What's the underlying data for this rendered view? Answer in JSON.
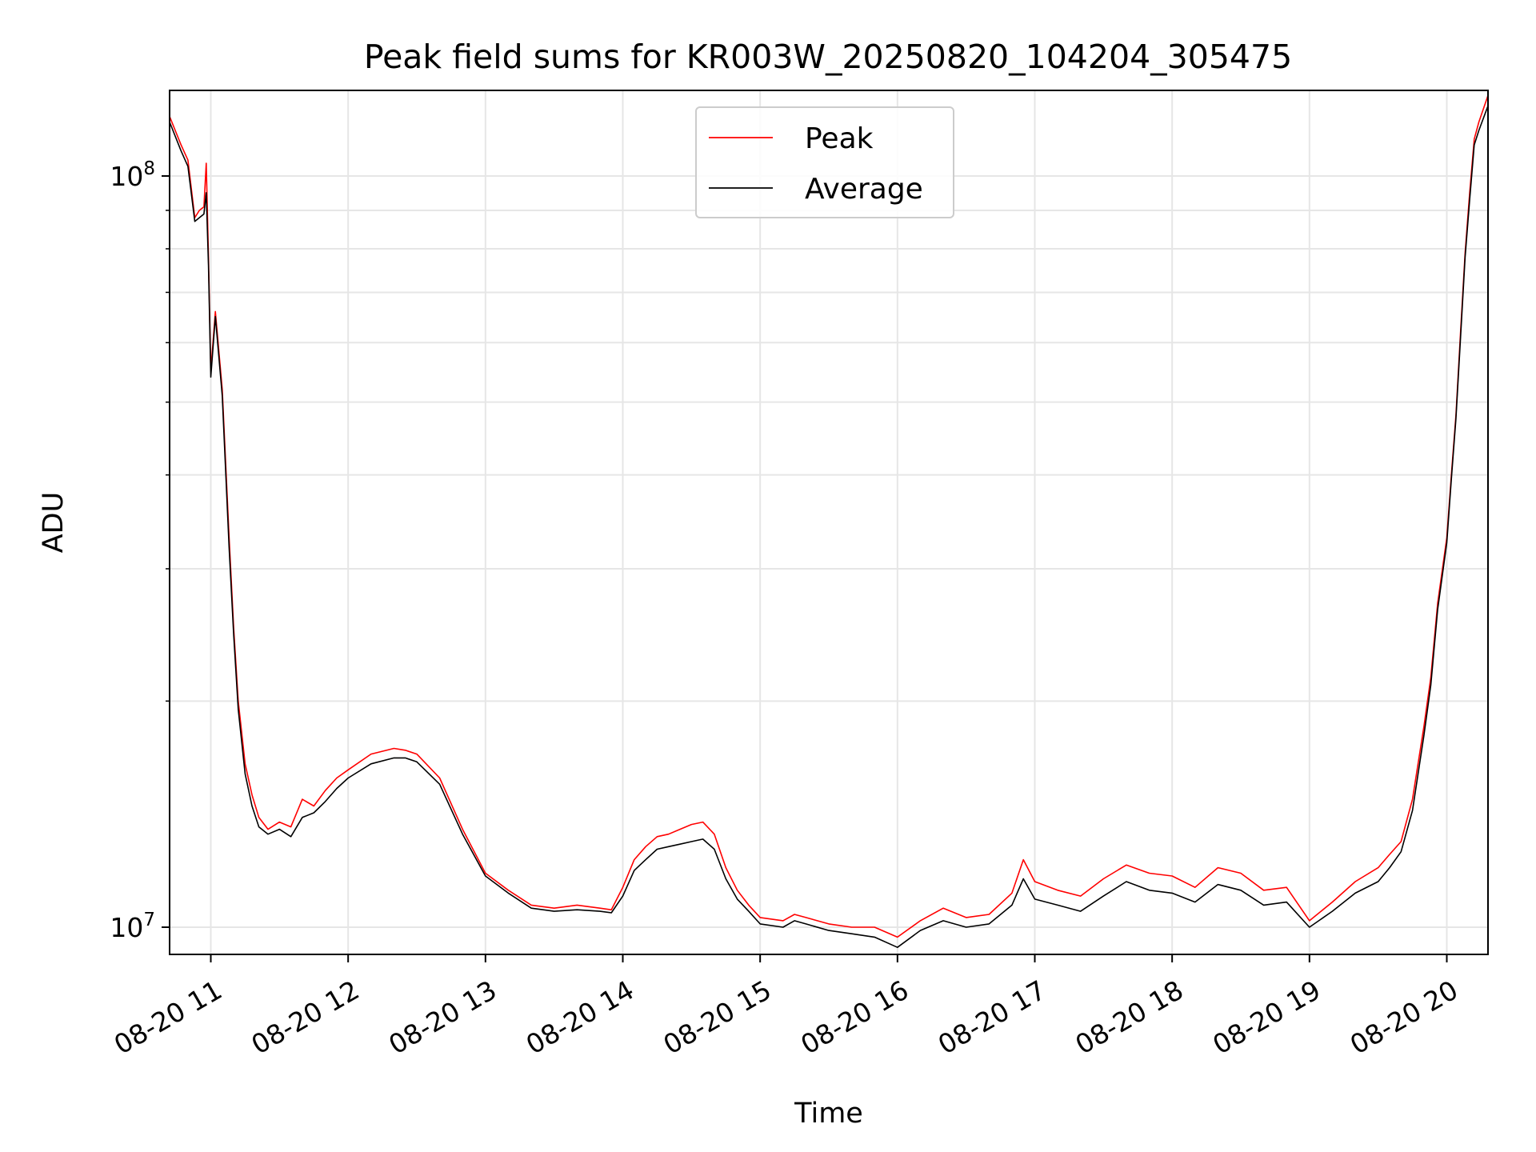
{
  "chart_data": {
    "type": "line",
    "title": "Peak field sums for KR003W_20250820_104204_305475",
    "xlabel": "Time",
    "ylabel": "ADU",
    "yscale": "log",
    "ylim": [
      9200000,
      130000000
    ],
    "xlim": [
      "2025-08-20 10:42",
      "2025-08-20 20:18"
    ],
    "x_ticks": [
      "2025-08-20 11:00",
      "2025-08-20 12:00",
      "2025-08-20 13:00",
      "2025-08-20 14:00",
      "2025-08-20 15:00",
      "2025-08-20 16:00",
      "2025-08-20 17:00",
      "2025-08-20 18:00",
      "2025-08-20 19:00",
      "2025-08-20 20:00"
    ],
    "x_tick_labels": [
      "08-20 11",
      "08-20 12",
      "08-20 13",
      "08-20 14",
      "08-20 15",
      "08-20 16",
      "08-20 17",
      "08-20 18",
      "08-20 19",
      "08-20 20"
    ],
    "y_ticks": [
      10000000,
      100000000
    ],
    "y_tick_labels": [
      {
        "base": "10",
        "exp": "7"
      },
      {
        "base": "10",
        "exp": "8"
      }
    ],
    "grid": true,
    "legend": {
      "location": "upper center",
      "entries": [
        "Peak",
        "Average"
      ]
    },
    "series": [
      {
        "name": "Peak",
        "color": "#ff0000",
        "x": [
          "2025-08-20 10:42",
          "2025-08-20 10:47",
          "2025-08-20 10:50",
          "2025-08-20 10:53",
          "2025-08-20 10:55",
          "2025-08-20 10:57",
          "2025-08-20 10:58",
          "2025-08-20 10:59",
          "2025-08-20 11:00",
          "2025-08-20 11:02",
          "2025-08-20 11:05",
          "2025-08-20 11:08",
          "2025-08-20 11:10",
          "2025-08-20 11:12",
          "2025-08-20 11:15",
          "2025-08-20 11:18",
          "2025-08-20 11:21",
          "2025-08-20 11:25",
          "2025-08-20 11:30",
          "2025-08-20 11:35",
          "2025-08-20 11:40",
          "2025-08-20 11:45",
          "2025-08-20 11:50",
          "2025-08-20 11:55",
          "2025-08-20 12:00",
          "2025-08-20 12:10",
          "2025-08-20 12:20",
          "2025-08-20 12:25",
          "2025-08-20 12:30",
          "2025-08-20 12:40",
          "2025-08-20 12:50",
          "2025-08-20 13:00",
          "2025-08-20 13:10",
          "2025-08-20 13:20",
          "2025-08-20 13:30",
          "2025-08-20 13:40",
          "2025-08-20 13:50",
          "2025-08-20 13:55",
          "2025-08-20 14:00",
          "2025-08-20 14:05",
          "2025-08-20 14:10",
          "2025-08-20 14:15",
          "2025-08-20 14:20",
          "2025-08-20 14:25",
          "2025-08-20 14:30",
          "2025-08-20 14:35",
          "2025-08-20 14:40",
          "2025-08-20 14:45",
          "2025-08-20 14:50",
          "2025-08-20 14:55",
          "2025-08-20 15:00",
          "2025-08-20 15:10",
          "2025-08-20 15:15",
          "2025-08-20 15:20",
          "2025-08-20 15:30",
          "2025-08-20 15:40",
          "2025-08-20 15:50",
          "2025-08-20 16:00",
          "2025-08-20 16:10",
          "2025-08-20 16:20",
          "2025-08-20 16:30",
          "2025-08-20 16:40",
          "2025-08-20 16:50",
          "2025-08-20 16:55",
          "2025-08-20 17:00",
          "2025-08-20 17:10",
          "2025-08-20 17:20",
          "2025-08-20 17:30",
          "2025-08-20 17:40",
          "2025-08-20 17:50",
          "2025-08-20 18:00",
          "2025-08-20 18:10",
          "2025-08-20 18:20",
          "2025-08-20 18:30",
          "2025-08-20 18:40",
          "2025-08-20 18:50",
          "2025-08-20 19:00",
          "2025-08-20 19:10",
          "2025-08-20 19:20",
          "2025-08-20 19:30",
          "2025-08-20 19:35",
          "2025-08-20 19:40",
          "2025-08-20 19:45",
          "2025-08-20 19:50",
          "2025-08-20 19:53",
          "2025-08-20 19:56",
          "2025-08-20 20:00",
          "2025-08-20 20:02",
          "2025-08-20 20:04",
          "2025-08-20 20:06",
          "2025-08-20 20:08",
          "2025-08-20 20:10",
          "2025-08-20 20:12",
          "2025-08-20 20:14",
          "2025-08-20 20:18"
        ],
        "values": [
          120000000,
          110000000,
          105000000,
          88000000,
          90000000,
          91000000,
          104000000,
          78000000,
          55000000,
          66000000,
          52000000,
          33000000,
          25000000,
          20000000,
          16500000,
          15000000,
          14000000,
          13500000,
          13800000,
          13600000,
          14800000,
          14500000,
          15200000,
          15800000,
          16200000,
          17000000,
          17300000,
          17200000,
          17000000,
          15800000,
          13500000,
          11800000,
          11200000,
          10700000,
          10600000,
          10700000,
          10600000,
          10550000,
          11300000,
          12300000,
          12800000,
          13200000,
          13300000,
          13500000,
          13700000,
          13800000,
          13300000,
          12000000,
          11200000,
          10700000,
          10300000,
          10200000,
          10400000,
          10300000,
          10100000,
          10000000,
          10000000,
          9700000,
          10200000,
          10600000,
          10300000,
          10400000,
          11100000,
          12300000,
          11500000,
          11200000,
          11000000,
          11600000,
          12100000,
          11800000,
          11700000,
          11300000,
          12000000,
          11800000,
          11200000,
          11300000,
          10200000,
          10800000,
          11500000,
          12000000,
          12500000,
          13000000,
          14800000,
          18500000,
          21500000,
          27000000,
          33000000,
          40000000,
          48000000,
          62000000,
          79000000,
          95000000,
          112000000,
          118000000,
          128000000
        ]
      },
      {
        "name": "Average",
        "color": "#000000",
        "x": [
          "2025-08-20 10:42",
          "2025-08-20 10:47",
          "2025-08-20 10:50",
          "2025-08-20 10:53",
          "2025-08-20 10:55",
          "2025-08-20 10:57",
          "2025-08-20 10:58",
          "2025-08-20 10:59",
          "2025-08-20 11:00",
          "2025-08-20 11:02",
          "2025-08-20 11:05",
          "2025-08-20 11:08",
          "2025-08-20 11:10",
          "2025-08-20 11:12",
          "2025-08-20 11:15",
          "2025-08-20 11:18",
          "2025-08-20 11:21",
          "2025-08-20 11:25",
          "2025-08-20 11:30",
          "2025-08-20 11:35",
          "2025-08-20 11:40",
          "2025-08-20 11:45",
          "2025-08-20 11:50",
          "2025-08-20 11:55",
          "2025-08-20 12:00",
          "2025-08-20 12:10",
          "2025-08-20 12:20",
          "2025-08-20 12:25",
          "2025-08-20 12:30",
          "2025-08-20 12:40",
          "2025-08-20 12:50",
          "2025-08-20 13:00",
          "2025-08-20 13:10",
          "2025-08-20 13:20",
          "2025-08-20 13:30",
          "2025-08-20 13:40",
          "2025-08-20 13:50",
          "2025-08-20 13:55",
          "2025-08-20 14:00",
          "2025-08-20 14:05",
          "2025-08-20 14:10",
          "2025-08-20 14:15",
          "2025-08-20 14:20",
          "2025-08-20 14:25",
          "2025-08-20 14:30",
          "2025-08-20 14:35",
          "2025-08-20 14:40",
          "2025-08-20 14:45",
          "2025-08-20 14:50",
          "2025-08-20 14:55",
          "2025-08-20 15:00",
          "2025-08-20 15:10",
          "2025-08-20 15:15",
          "2025-08-20 15:20",
          "2025-08-20 15:30",
          "2025-08-20 15:40",
          "2025-08-20 15:50",
          "2025-08-20 16:00",
          "2025-08-20 16:10",
          "2025-08-20 16:20",
          "2025-08-20 16:30",
          "2025-08-20 16:40",
          "2025-08-20 16:50",
          "2025-08-20 16:55",
          "2025-08-20 17:00",
          "2025-08-20 17:10",
          "2025-08-20 17:20",
          "2025-08-20 17:30",
          "2025-08-20 17:40",
          "2025-08-20 17:50",
          "2025-08-20 18:00",
          "2025-08-20 18:10",
          "2025-08-20 18:20",
          "2025-08-20 18:30",
          "2025-08-20 18:40",
          "2025-08-20 18:50",
          "2025-08-20 19:00",
          "2025-08-20 19:10",
          "2025-08-20 19:20",
          "2025-08-20 19:30",
          "2025-08-20 19:35",
          "2025-08-20 19:40",
          "2025-08-20 19:45",
          "2025-08-20 19:50",
          "2025-08-20 19:53",
          "2025-08-20 19:56",
          "2025-08-20 20:00",
          "2025-08-20 20:02",
          "2025-08-20 20:04",
          "2025-08-20 20:06",
          "2025-08-20 20:08",
          "2025-08-20 20:10",
          "2025-08-20 20:12",
          "2025-08-20 20:14",
          "2025-08-20 20:18"
        ],
        "values": [
          118000000,
          108000000,
          103000000,
          87000000,
          88000000,
          89000000,
          95000000,
          76000000,
          54000000,
          65000000,
          51000000,
          32000000,
          24500000,
          19500000,
          16000000,
          14500000,
          13600000,
          13300000,
          13500000,
          13200000,
          14000000,
          14200000,
          14700000,
          15300000,
          15800000,
          16500000,
          16800000,
          16800000,
          16600000,
          15500000,
          13300000,
          11700000,
          11100000,
          10600000,
          10500000,
          10550000,
          10500000,
          10450000,
          11000000,
          11900000,
          12300000,
          12700000,
          12800000,
          12900000,
          13000000,
          13100000,
          12700000,
          11600000,
          10900000,
          10500000,
          10100000,
          10000000,
          10200000,
          10100000,
          9900000,
          9800000,
          9700000,
          9400000,
          9900000,
          10200000,
          10000000,
          10100000,
          10700000,
          11600000,
          10900000,
          10700000,
          10500000,
          11000000,
          11500000,
          11200000,
          11100000,
          10800000,
          11400000,
          11200000,
          10700000,
          10800000,
          10000000,
          10500000,
          11100000,
          11500000,
          12000000,
          12600000,
          14300000,
          18000000,
          21000000,
          26500000,
          32500000,
          39500000,
          47500000,
          61000000,
          78000000,
          93000000,
          110000000,
          115000000,
          124000000
        ]
      }
    ]
  }
}
